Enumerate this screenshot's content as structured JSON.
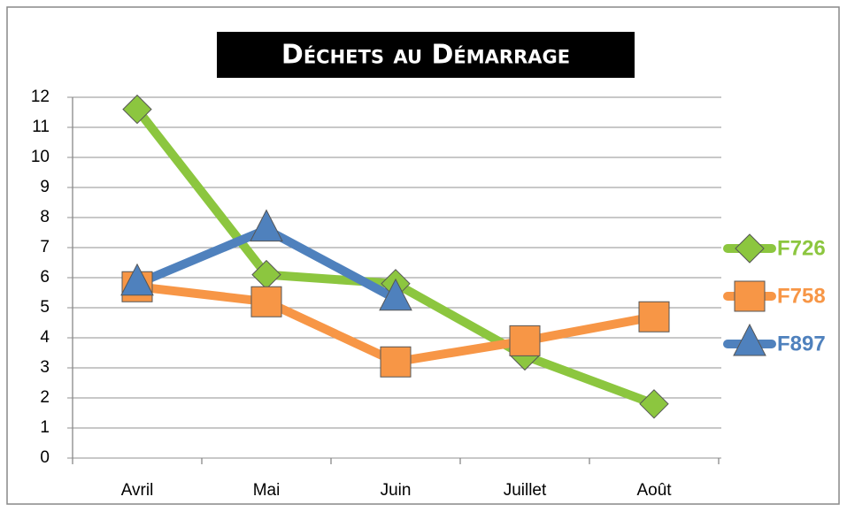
{
  "chart_data": {
    "type": "line",
    "title": "Déchets au Démarrage",
    "categories": [
      "Avril",
      "Mai",
      "Juin",
      "Juillet",
      "Août"
    ],
    "series": [
      {
        "name": "F726",
        "color": "#8cc63f",
        "marker": "diamond",
        "values": [
          11.6,
          6.1,
          5.8,
          3.4,
          1.8
        ]
      },
      {
        "name": "F758",
        "color": "#f79646",
        "marker": "square",
        "values": [
          5.7,
          5.2,
          3.2,
          3.9,
          4.7
        ]
      },
      {
        "name": "F897",
        "color": "#4f81bd",
        "marker": "triangle",
        "values": [
          5.8,
          7.6,
          5.3,
          null,
          null
        ]
      }
    ],
    "ylim": [
      0,
      12
    ],
    "yticks": [
      0,
      1,
      2,
      3,
      4,
      5,
      6,
      7,
      8,
      9,
      10,
      11,
      12
    ],
    "grid": true,
    "legend": "right"
  }
}
